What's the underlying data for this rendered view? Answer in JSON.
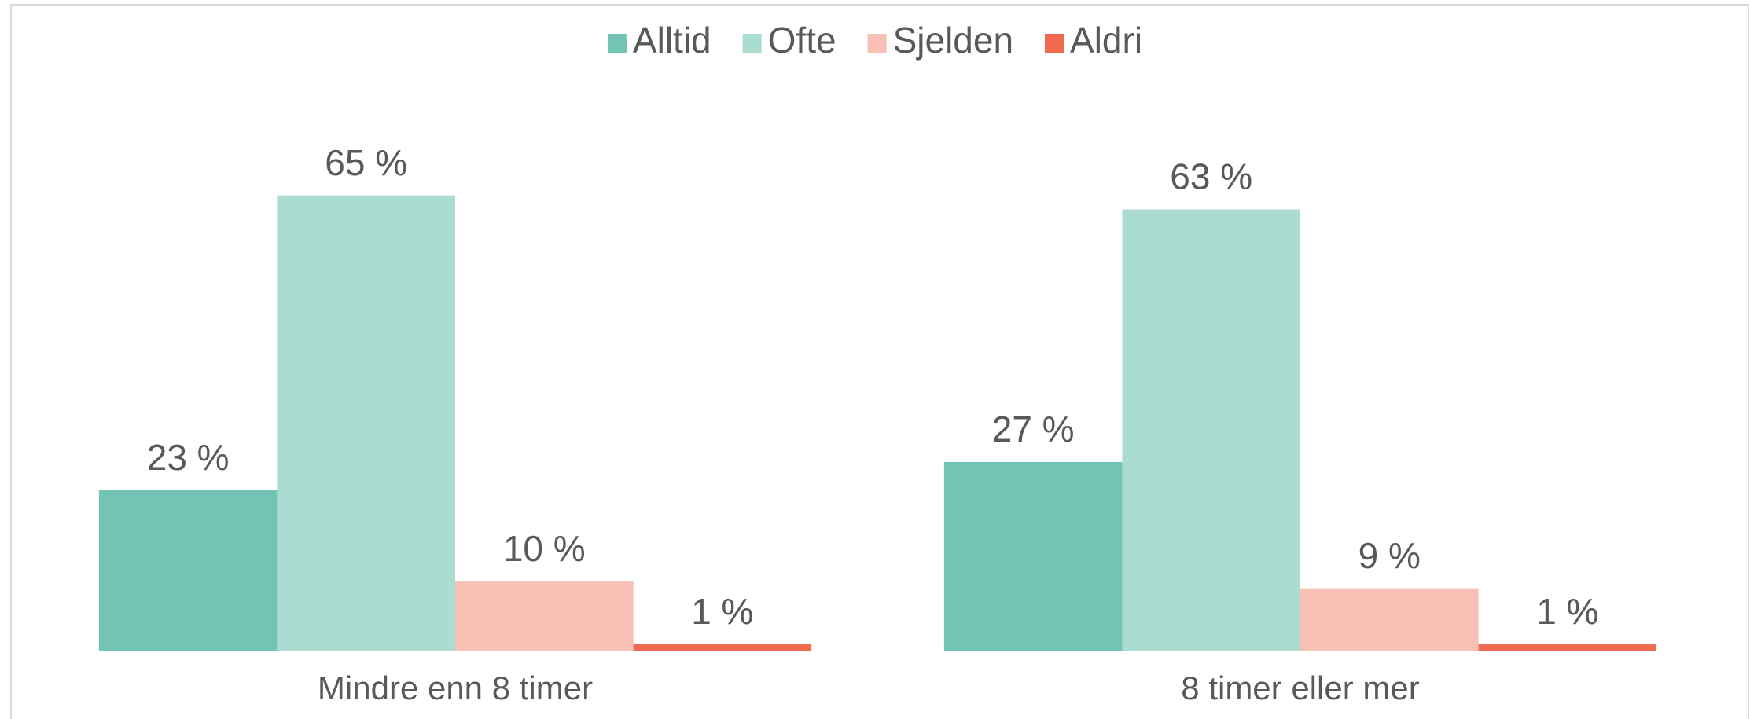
{
  "chart_data": {
    "type": "bar",
    "categories": [
      "Mindre enn 8 timer",
      "8 timer eller mer"
    ],
    "series": [
      {
        "name": "Alltid",
        "color": "#72c4b5",
        "values": [
          23,
          27
        ],
        "value_labels": [
          "23 %",
          "27 %"
        ]
      },
      {
        "name": "Ofte",
        "color": "#aadcd2",
        "values": [
          65,
          63
        ],
        "value_labels": [
          "65 %",
          "63 %"
        ]
      },
      {
        "name": "Sjelden",
        "color": "#f9c0b5",
        "values": [
          10,
          9
        ],
        "value_labels": [
          "10 %",
          "9 %"
        ]
      },
      {
        "name": "Aldri",
        "color": "#ef6a4f",
        "values": [
          1,
          1
        ],
        "value_labels": [
          "1 %",
          "1 %"
        ]
      }
    ],
    "ylim": [
      0,
      70
    ],
    "legend": "top"
  }
}
